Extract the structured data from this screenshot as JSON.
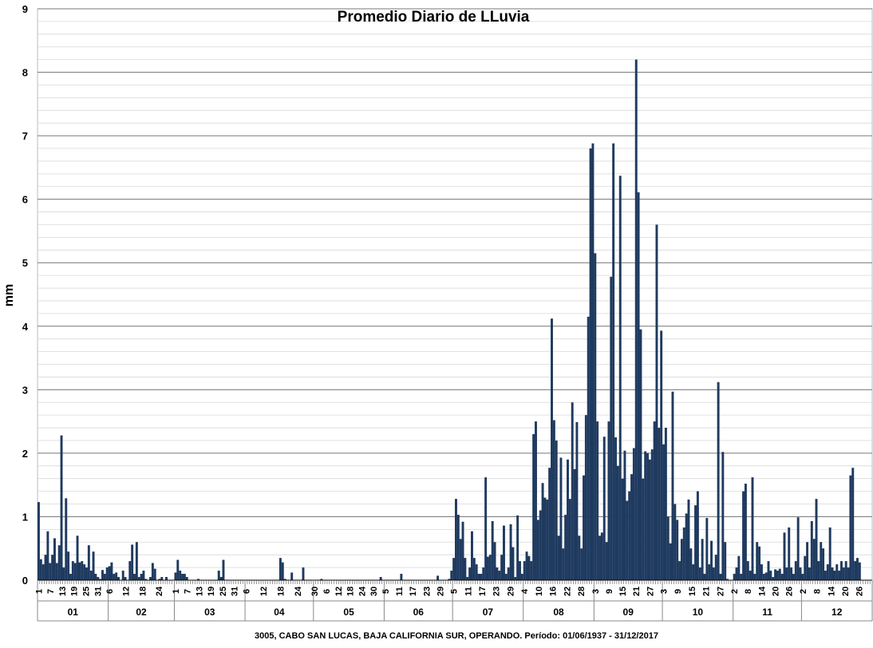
{
  "chart_data": {
    "type": "bar",
    "title": "Promedio Diario de LLuvia",
    "ylabel": "mm",
    "xlabel": "",
    "ylim": [
      0,
      9
    ],
    "yticks": [
      "0",
      "1",
      "2",
      "3",
      "4",
      "5",
      "6",
      "7",
      "8",
      "9"
    ],
    "grid": true,
    "minor_grid_step": 0.2,
    "bar_color": "#1f3a5f",
    "footer": "3005, CABO SAN LUCAS, BAJA CALIFORNIA SUR, OPERANDO. Período: 01/06/1937 - 31/12/2017",
    "months": [
      {
        "label": "01",
        "days": 31,
        "tick_labels": [
          "1",
          "7",
          "13",
          "19",
          "25",
          "31"
        ]
      },
      {
        "label": "02",
        "days": 29,
        "tick_labels": [
          "6",
          "12",
          "18",
          "24"
        ]
      },
      {
        "label": "03",
        "days": 31,
        "tick_labels": [
          "1",
          "7",
          "13",
          "19",
          "25",
          "31"
        ]
      },
      {
        "label": "04",
        "days": 30,
        "tick_labels": [
          "6",
          "12",
          "18",
          "24"
        ]
      },
      {
        "label": "05",
        "days": 31,
        "tick_labels": [
          "30",
          "6",
          "12",
          "18",
          "24",
          "30"
        ]
      },
      {
        "label": "06",
        "days": 30,
        "tick_labels": [
          "5",
          "11",
          "17",
          "23",
          "29"
        ]
      },
      {
        "label": "07",
        "days": 31,
        "tick_labels": [
          "5",
          "11",
          "17",
          "23",
          "29"
        ]
      },
      {
        "label": "08",
        "days": 31,
        "tick_labels": [
          "4",
          "10",
          "16",
          "22",
          "28"
        ]
      },
      {
        "label": "09",
        "days": 30,
        "tick_labels": [
          "3",
          "9",
          "15",
          "21",
          "27"
        ]
      },
      {
        "label": "10",
        "days": 31,
        "tick_labels": [
          "3",
          "9",
          "15",
          "21",
          "27"
        ]
      },
      {
        "label": "11",
        "days": 30,
        "tick_labels": [
          "2",
          "8",
          "14",
          "20",
          "26"
        ]
      },
      {
        "label": "12",
        "days": 31,
        "tick_labels": [
          "2",
          "8",
          "14",
          "20",
          "26"
        ]
      }
    ],
    "series": [
      {
        "values": [
          1.23,
          0.33,
          0.25,
          0.4,
          0.77,
          0.27,
          0.4,
          0.66,
          0.27,
          0.55,
          2.28,
          0.2,
          1.29,
          0.45,
          0.1,
          0.3,
          0.27,
          0.7,
          0.28,
          0.3,
          0.25,
          0.2,
          0.55,
          0.15,
          0.45,
          0.1,
          0.05,
          0.02,
          0.16,
          0.1,
          0.2,
          0.22,
          0.28,
          0.1,
          0.12,
          0.05,
          0.0,
          0.15,
          0.05,
          0.0,
          0.3,
          0.56,
          0.1,
          0.6,
          0.05,
          0.1,
          0.15,
          0.02,
          0.0,
          0.05,
          0.27,
          0.18,
          0.0,
          0.02,
          0.05,
          0.0,
          0.05,
          0.0,
          0.0,
          0.0,
          0.12,
          0.32,
          0.15,
          0.1,
          0.1,
          0.05,
          0.0,
          0.0,
          0.0,
          0.0,
          0.02,
          0.0,
          0.0,
          0.0,
          0.0,
          0.0,
          0.0,
          0.0,
          0.0,
          0.15,
          0.05,
          0.32,
          0.0,
          0.0,
          0.0,
          0.0,
          0.0,
          0.0,
          0.0,
          0.0,
          0.0,
          0.0,
          0.0,
          0.0,
          0.0,
          0.0,
          0.0,
          0.0,
          0.0,
          0.0,
          0.0,
          0.0,
          0.0,
          0.0,
          0.0,
          0.0,
          0.35,
          0.28,
          0.02,
          0.0,
          0.0,
          0.12,
          0.0,
          0.0,
          0.0,
          0.0,
          0.2,
          0.0,
          0.0,
          0.0,
          0.0,
          0.0,
          0.0,
          0.0,
          0.02,
          0.0,
          0.0,
          0.0,
          0.0,
          0.0,
          0.0,
          0.0,
          0.0,
          0.0,
          0.0,
          0.0,
          0.0,
          0.0,
          0.0,
          0.0,
          0.0,
          0.0,
          0.0,
          0.0,
          0.0,
          0.0,
          0.0,
          0.0,
          0.0,
          0.0,
          0.05,
          0.0,
          0.0,
          0.0,
          0.0,
          0.0,
          0.0,
          0.0,
          0.0,
          0.1,
          0.0,
          0.0,
          0.0,
          0.0,
          0.0,
          0.0,
          0.0,
          0.0,
          0.0,
          0.0,
          0.0,
          0.0,
          0.0,
          0.0,
          0.0,
          0.07,
          0.0,
          0.0,
          0.0,
          0.0,
          0.02,
          0.15,
          0.35,
          1.28,
          1.03,
          0.65,
          0.92,
          0.35,
          0.05,
          0.2,
          0.77,
          0.35,
          0.25,
          0.1,
          0.1,
          0.2,
          1.62,
          0.37,
          0.4,
          0.93,
          0.6,
          0.2,
          0.15,
          0.4,
          0.86,
          0.1,
          0.2,
          0.88,
          0.52,
          0.05,
          1.02,
          0.3,
          0.1,
          0.3,
          0.45,
          0.38,
          0.3,
          2.3,
          2.5,
          0.95,
          1.1,
          1.53,
          1.3,
          1.27,
          1.77,
          4.12,
          2.52,
          2.2,
          0.7,
          1.93,
          0.5,
          1.03,
          1.9,
          1.28,
          2.8,
          1.75,
          2.49,
          0.7,
          0.5,
          1.65,
          2.6,
          4.15,
          6.8,
          6.88,
          5.15,
          2.5,
          0.7,
          0.75,
          2.26,
          0.6,
          2.5,
          4.78,
          6.88,
          2.25,
          1.8,
          6.37,
          1.6,
          2.04,
          1.25,
          1.4,
          1.67,
          2.08,
          8.2,
          6.11,
          3.95,
          1.6,
          2.03,
          2.0,
          1.9,
          2.06,
          2.5,
          5.6,
          2.4,
          3.93,
          2.14,
          2.4,
          1.0,
          0.58,
          2.97,
          1.2,
          0.95,
          0.3,
          0.65,
          0.83,
          1.05,
          1.27,
          0.5,
          0.25,
          1.18,
          1.4,
          0.2,
          0.65,
          0.1,
          0.98,
          0.25,
          0.62,
          0.2,
          0.4,
          3.12,
          0.1,
          2.02,
          0.6,
          0.02,
          0.0,
          0.0,
          0.1,
          0.2,
          0.38,
          0.1,
          1.4,
          1.52,
          0.3,
          0.15,
          1.62,
          0.1,
          0.6,
          0.53,
          0.25,
          0.1,
          0.12,
          0.3,
          0.15,
          0.05,
          0.17,
          0.15,
          0.18,
          0.1,
          0.75,
          0.2,
          0.83,
          0.2,
          0.1,
          0.3,
          0.99,
          0.2,
          0.1,
          0.38,
          0.6,
          0.2,
          0.93,
          0.65,
          1.28,
          0.3,
          0.6,
          0.5,
          0.15,
          0.25,
          0.83,
          0.2,
          0.15,
          0.25,
          0.15,
          0.3,
          0.2,
          0.3,
          0.2,
          1.65,
          1.77,
          0.3,
          0.35,
          0.28,
          0.0,
          0.0,
          0.0,
          0.0,
          0.0
        ]
      }
    ]
  }
}
